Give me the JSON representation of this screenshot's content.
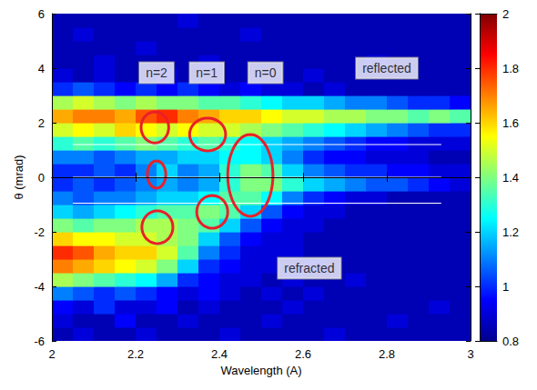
{
  "chart_data": {
    "type": "heatmap",
    "xlabel": "Wavelength (A)",
    "ylabel": "θ (mrad)",
    "xlim": [
      2,
      3
    ],
    "xticks": [
      2,
      2.2,
      2.4,
      2.6,
      2.8,
      3
    ],
    "ylim": [
      -6,
      6
    ],
    "yticks": [
      -6,
      -4,
      -2,
      0,
      2,
      4,
      6
    ],
    "colorbar": {
      "range": [
        0.8,
        2
      ],
      "ticks": [
        0.8,
        1,
        1.2,
        1.4,
        1.6,
        1.8,
        2
      ]
    },
    "x": [
      2.025,
      2.075,
      2.125,
      2.175,
      2.225,
      2.275,
      2.325,
      2.375,
      2.425,
      2.475,
      2.525,
      2.575,
      2.625,
      2.675,
      2.725,
      2.775,
      2.825,
      2.875,
      2.925,
      2.975
    ],
    "y": [
      -5.75,
      -5.25,
      -4.75,
      -4.25,
      -3.75,
      -3.25,
      -2.75,
      -2.25,
      -1.75,
      -1.25,
      -0.75,
      -0.25,
      0.25,
      0.75,
      1.25,
      1.75,
      2.25,
      2.75,
      3.25,
      3.75,
      4.25,
      4.75,
      5.25,
      5.75
    ],
    "cells": [
      [
        0.85,
        0.9,
        0.85,
        0.85,
        0.9,
        0.85,
        0.85,
        0.85,
        0.9,
        0.85,
        0.85,
        0.85,
        0.85,
        0.9,
        0.85,
        0.85,
        0.85,
        0.85,
        0.85,
        0.85
      ],
      [
        0.9,
        0.85,
        0.85,
        0.95,
        0.85,
        0.85,
        0.9,
        0.85,
        0.85,
        0.85,
        0.9,
        0.85,
        0.85,
        0.85,
        0.85,
        0.85,
        0.9,
        0.85,
        0.85,
        0.85
      ],
      [
        0.95,
        0.9,
        1.0,
        0.9,
        0.9,
        0.95,
        0.85,
        0.9,
        0.85,
        0.85,
        0.85,
        0.9,
        0.85,
        0.85,
        0.85,
        0.85,
        0.85,
        0.85,
        0.9,
        0.85
      ],
      [
        1.1,
        1.05,
        1.0,
        1.05,
        1.0,
        0.95,
        0.9,
        0.95,
        0.9,
        0.85,
        0.9,
        0.85,
        0.9,
        0.85,
        0.85,
        0.85,
        0.85,
        0.85,
        0.85,
        0.85
      ],
      [
        1.45,
        1.4,
        1.35,
        1.3,
        1.25,
        1.15,
        1.0,
        0.95,
        0.9,
        0.9,
        0.85,
        0.9,
        0.85,
        0.85,
        0.9,
        0.85,
        0.85,
        0.85,
        0.85,
        0.85
      ],
      [
        1.7,
        1.65,
        1.6,
        1.55,
        1.5,
        1.4,
        1.2,
        1.0,
        0.95,
        0.9,
        0.9,
        0.85,
        0.9,
        0.85,
        0.85,
        0.85,
        0.85,
        0.85,
        0.85,
        0.85
      ],
      [
        1.8,
        1.75,
        1.65,
        1.6,
        1.6,
        1.5,
        1.35,
        1.1,
        1.0,
        0.9,
        0.9,
        0.9,
        0.85,
        0.85,
        0.85,
        0.85,
        0.85,
        0.85,
        0.85,
        0.85
      ],
      [
        1.6,
        1.55,
        1.55,
        1.5,
        1.5,
        1.45,
        1.4,
        1.2,
        1.05,
        0.95,
        0.9,
        0.9,
        0.85,
        0.85,
        0.85,
        0.85,
        0.85,
        0.85,
        0.85,
        0.85
      ],
      [
        1.4,
        1.35,
        1.4,
        1.4,
        1.45,
        1.45,
        1.4,
        1.35,
        1.2,
        1.05,
        0.95,
        0.9,
        0.9,
        0.85,
        0.85,
        0.85,
        0.85,
        0.85,
        0.85,
        0.85
      ],
      [
        1.2,
        1.15,
        1.2,
        1.25,
        1.3,
        1.35,
        1.35,
        1.4,
        1.35,
        1.2,
        1.05,
        0.95,
        0.9,
        0.9,
        0.85,
        0.85,
        0.85,
        0.85,
        0.85,
        0.85
      ],
      [
        1.1,
        1.05,
        1.1,
        1.1,
        1.15,
        1.2,
        1.2,
        1.25,
        1.35,
        1.35,
        1.25,
        1.1,
        1.0,
        0.95,
        0.9,
        0.9,
        0.85,
        0.85,
        0.85,
        0.85
      ],
      [
        1.0,
        1.05,
        1.0,
        1.05,
        1.1,
        1.15,
        1.1,
        1.15,
        1.3,
        1.4,
        1.4,
        1.3,
        1.2,
        1.15,
        1.1,
        1.05,
        1.05,
        1.0,
        0.95,
        0.9
      ],
      [
        1.0,
        1.0,
        1.05,
        1.0,
        1.1,
        1.2,
        1.1,
        1.15,
        1.3,
        1.4,
        1.35,
        1.2,
        1.1,
        1.05,
        1.0,
        1.0,
        0.95,
        0.95,
        0.9,
        0.9
      ],
      [
        1.1,
        1.1,
        1.05,
        1.1,
        1.15,
        1.15,
        1.2,
        1.2,
        1.25,
        1.25,
        1.2,
        1.1,
        1.0,
        0.95,
        0.95,
        0.9,
        0.9,
        0.9,
        0.85,
        0.85
      ],
      [
        1.3,
        1.35,
        1.3,
        1.35,
        1.4,
        1.35,
        1.3,
        1.35,
        1.3,
        1.25,
        1.2,
        1.15,
        1.1,
        1.05,
        1.0,
        0.95,
        0.95,
        0.9,
        0.9,
        0.9
      ],
      [
        1.5,
        1.55,
        1.5,
        1.6,
        1.55,
        1.5,
        1.55,
        1.5,
        1.5,
        1.45,
        1.4,
        1.35,
        1.3,
        1.25,
        1.2,
        1.15,
        1.1,
        1.05,
        1.0,
        1.0
      ],
      [
        1.65,
        1.7,
        1.7,
        1.65,
        1.75,
        1.8,
        1.7,
        1.65,
        1.6,
        1.6,
        1.55,
        1.5,
        1.5,
        1.45,
        1.45,
        1.4,
        1.4,
        1.35,
        1.4,
        1.35
      ],
      [
        1.45,
        1.5,
        1.45,
        1.4,
        1.45,
        1.4,
        1.4,
        1.35,
        1.35,
        1.3,
        1.25,
        1.2,
        1.2,
        1.15,
        1.1,
        1.1,
        1.05,
        1.0,
        1.0,
        0.95
      ],
      [
        1.0,
        1.05,
        1.0,
        0.95,
        1.0,
        0.95,
        1.0,
        0.95,
        0.9,
        0.95,
        0.9,
        0.9,
        0.85,
        0.9,
        0.85,
        0.85,
        0.85,
        0.85,
        0.85,
        0.85
      ],
      [
        0.9,
        0.85,
        0.9,
        0.85,
        0.85,
        0.9,
        0.85,
        0.85,
        0.85,
        0.85,
        0.85,
        0.85,
        0.9,
        0.85,
        0.85,
        0.85,
        0.85,
        0.85,
        0.85,
        0.85
      ],
      [
        0.85,
        0.85,
        0.9,
        0.85,
        0.85,
        0.85,
        0.85,
        0.9,
        0.85,
        0.85,
        0.85,
        0.85,
        0.85,
        0.85,
        0.85,
        0.9,
        0.85,
        0.85,
        0.85,
        0.85
      ],
      [
        0.85,
        0.85,
        0.85,
        0.85,
        0.9,
        0.85,
        0.85,
        0.85,
        0.85,
        0.85,
        0.85,
        0.85,
        0.85,
        0.85,
        0.85,
        0.85,
        0.85,
        0.85,
        0.85,
        0.85
      ],
      [
        0.85,
        0.9,
        0.85,
        0.85,
        0.85,
        0.85,
        0.85,
        0.85,
        0.85,
        0.9,
        0.85,
        0.85,
        0.85,
        0.85,
        0.85,
        0.85,
        0.85,
        0.85,
        0.85,
        0.85
      ],
      [
        0.85,
        0.85,
        0.85,
        0.85,
        0.85,
        0.85,
        0.9,
        0.85,
        0.85,
        0.85,
        0.85,
        0.85,
        0.85,
        0.85,
        0.85,
        0.85,
        0.85,
        0.85,
        0.85,
        0.85
      ]
    ],
    "annotations": [
      {
        "text": "n=2",
        "x": 2.25,
        "y": 3.83
      },
      {
        "text": "n=1",
        "x": 2.37,
        "y": 3.83
      },
      {
        "text": "n=0",
        "x": 2.51,
        "y": 3.83
      },
      {
        "text": "reflected",
        "x": 2.8,
        "y": 4.0
      },
      {
        "text": "refracted",
        "x": 2.615,
        "y": -3.33
      }
    ],
    "regions": [
      {
        "x": 2.246,
        "y": 1.83,
        "rx": 0.033,
        "ry": 0.57,
        "color": "#e8202a"
      },
      {
        "x": 2.25,
        "y": 0.1,
        "rx": 0.022,
        "ry": 0.5,
        "color": "#e8202a"
      },
      {
        "x": 2.252,
        "y": -1.83,
        "rx": 0.037,
        "ry": 0.6,
        "color": "#e8202a"
      },
      {
        "x": 2.372,
        "y": 1.57,
        "rx": 0.043,
        "ry": 0.6,
        "color": "#e8202a"
      },
      {
        "x": 2.383,
        "y": -1.27,
        "rx": 0.037,
        "ry": 0.6,
        "color": "#e8202a"
      },
      {
        "x": 2.474,
        "y": 0.07,
        "rx": 0.054,
        "ry": 1.5,
        "color": "#e8202a"
      }
    ],
    "guide_lines": [
      {
        "y": 1.2,
        "x": [
          2.05,
          2.93
        ],
        "color": "#ffffff"
      },
      {
        "y": 0,
        "x": [
          2.05,
          2.93
        ],
        "color": "#ffffff"
      },
      {
        "y": -0.95,
        "x": [
          2.05,
          2.93
        ],
        "color": "#ffffff"
      }
    ]
  }
}
